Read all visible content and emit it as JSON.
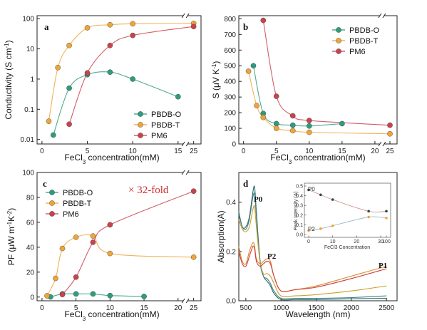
{
  "colors": {
    "PBDB-O": "#2e9c7e",
    "PBDB-T": "#f0a53a",
    "PM6": "#c9434b"
  },
  "chart_data": [
    {
      "type": "scatter",
      "panel": "a",
      "xlabel": "FeCl3 concentration(mM)",
      "ylabel": "Conductivity (S cm-1)",
      "yscale": "log",
      "ylim": [
        0.01,
        100
      ],
      "xticks": [
        "0",
        "5",
        "10",
        "15",
        "25"
      ],
      "yticks": [
        "0.01",
        "0.1",
        "1",
        "10",
        "100"
      ],
      "x_axis_break": "between 15 and 25",
      "legend_position": "bottom-right",
      "series": [
        {
          "name": "PBDB-O",
          "x": [
            1.25,
            3,
            5,
            7.5,
            10,
            15
          ],
          "y": [
            0.014,
            0.5,
            1.4,
            1.7,
            1.0,
            0.26
          ]
        },
        {
          "name": "PBDB-T",
          "x": [
            0.75,
            1.75,
            3,
            5,
            7.5,
            10,
            25
          ],
          "y": [
            0.04,
            2.4,
            13,
            50,
            63,
            68,
            70
          ]
        },
        {
          "name": "PM6",
          "x": [
            3,
            5,
            7.5,
            10,
            25
          ],
          "y": [
            0.032,
            1.6,
            13,
            28,
            55
          ]
        }
      ]
    },
    {
      "type": "scatter",
      "panel": "b",
      "xlabel": "FeCl3 concentration(mM)",
      "ylabel": "S (μV K-1)",
      "ylim": [
        0,
        800
      ],
      "xticks": [
        "0",
        "5",
        "10",
        "15",
        "20",
        "25"
      ],
      "yticks": [
        "0",
        "100",
        "200",
        "300",
        "400",
        "500",
        "600",
        "700",
        "800"
      ],
      "x_axis_break": "between 20 and 25",
      "legend_position": "top-right",
      "series": [
        {
          "name": "PBDB-O",
          "x": [
            1.5,
            3,
            5,
            7.5,
            10,
            15
          ],
          "y": [
            500,
            195,
            130,
            120,
            115,
            130
          ]
        },
        {
          "name": "PBDB-T",
          "x": [
            0.75,
            2,
            3,
            5,
            7.5,
            10,
            25
          ],
          "y": [
            465,
            245,
            170,
            100,
            85,
            75,
            65
          ]
        },
        {
          "name": "PM6",
          "x": [
            3,
            5,
            7.5,
            10,
            25
          ],
          "y": [
            790,
            305,
            180,
            150,
            120
          ]
        }
      ]
    },
    {
      "type": "scatter",
      "panel": "c",
      "xlabel": "FeCl3 concentration(mM)",
      "ylabel": "PF (μW m-1K-2)",
      "ylim": [
        0,
        100
      ],
      "xticks": [
        "0",
        "5",
        "10",
        "15",
        "20",
        "25"
      ],
      "yticks": [
        "0",
        "20",
        "40",
        "60",
        "80",
        "100"
      ],
      "x_axis_break": "between 20 and 25",
      "legend_position": "top-left",
      "annotation": "× 32-fold",
      "series": [
        {
          "name": "PBDB-O",
          "x": [
            1.25,
            3,
            5,
            7.5,
            10,
            15
          ],
          "y": [
            0.1,
            2.5,
            2.5,
            2.5,
            1.2,
            0.5
          ]
        },
        {
          "name": "PBDB-T",
          "x": [
            0.75,
            2,
            3,
            5,
            7.5,
            10,
            25
          ],
          "y": [
            1,
            15,
            39,
            48,
            49,
            35,
            32
          ]
        },
        {
          "name": "PM6",
          "x": [
            3,
            5,
            7.5,
            10,
            25
          ],
          "y": [
            2,
            16,
            44,
            58,
            85
          ]
        }
      ]
    },
    {
      "type": "line",
      "panel": "d",
      "xlabel": "Wavelength (nm)",
      "ylabel": "Absorption(A)",
      "xlim": [
        400,
        2500
      ],
      "ylim": [
        0,
        0.5
      ],
      "xticks": [
        "500",
        "1000",
        "1500",
        "2000",
        "2500"
      ],
      "yticks": [
        "0.0",
        "0.2",
        "0.4"
      ],
      "peak_labels": [
        "P0",
        "P2",
        "P1"
      ],
      "series": [
        {
          "x": [
            400,
            450,
            500,
            550,
            600,
            625,
            650,
            700,
            750,
            800,
            850,
            900,
            1000,
            1200,
            1500,
            2000,
            2500
          ],
          "y": [
            0.36,
            0.3,
            0.3,
            0.34,
            0.44,
            0.46,
            0.36,
            0.17,
            0.1,
            0.08,
            0.06,
            0.03,
            0.005,
            0.005,
            0.005,
            0.008,
            0.01
          ]
        },
        {
          "x": [
            400,
            450,
            500,
            550,
            600,
            625,
            650,
            700,
            750,
            800,
            850,
            900,
            1000,
            1200,
            1500,
            2000,
            2500
          ],
          "y": [
            0.35,
            0.3,
            0.29,
            0.33,
            0.42,
            0.43,
            0.34,
            0.16,
            0.1,
            0.09,
            0.07,
            0.04,
            0.01,
            0.01,
            0.01,
            0.013,
            0.02
          ]
        },
        {
          "x": [
            400,
            450,
            500,
            550,
            600,
            625,
            650,
            700,
            750,
            800,
            850,
            900,
            1000,
            1200,
            1500,
            2000,
            2500
          ],
          "y": [
            0.33,
            0.29,
            0.28,
            0.3,
            0.37,
            0.38,
            0.3,
            0.16,
            0.11,
            0.11,
            0.1,
            0.07,
            0.02,
            0.02,
            0.025,
            0.04,
            0.06
          ]
        },
        {
          "x": [
            400,
            450,
            500,
            550,
            600,
            625,
            650,
            700,
            750,
            800,
            850,
            900,
            1000,
            1200,
            1500,
            2000,
            2500
          ],
          "y": [
            0.22,
            0.16,
            0.15,
            0.2,
            0.235,
            0.22,
            0.17,
            0.15,
            0.16,
            0.17,
            0.16,
            0.1,
            0.04,
            0.045,
            0.06,
            0.1,
            0.14
          ]
        },
        {
          "x": [
            400,
            450,
            500,
            550,
            600,
            625,
            650,
            700,
            750,
            800,
            850,
            900,
            1000,
            1200,
            1500,
            2000,
            2500
          ],
          "y": [
            0.2,
            0.15,
            0.14,
            0.18,
            0.22,
            0.21,
            0.16,
            0.14,
            0.15,
            0.16,
            0.15,
            0.1,
            0.04,
            0.045,
            0.055,
            0.09,
            0.13
          ]
        }
      ],
      "inset": {
        "xlabel": "FeCl3 Concentration",
        "ylabel": "Peak Intensity (A)",
        "xticks": [
          "0",
          "10",
          "20",
          "30",
          "100"
        ],
        "yticks": [
          "0.0",
          "0.1",
          "0.2",
          "0.3",
          "0.4",
          "0.5"
        ],
        "ylim": [
          0,
          0.5
        ],
        "series": [
          {
            "name": "P0",
            "x": [
              0,
              5,
              10,
              20,
              30
            ],
            "y": [
              0.46,
              0.41,
              0.36,
              0.24,
              0.24
            ]
          },
          {
            "name": "P2",
            "x": [
              0,
              5,
              10,
              20,
              30
            ],
            "y": [
              0.04,
              0.06,
              0.09,
              0.18,
              0.17
            ]
          }
        ]
      }
    }
  ]
}
